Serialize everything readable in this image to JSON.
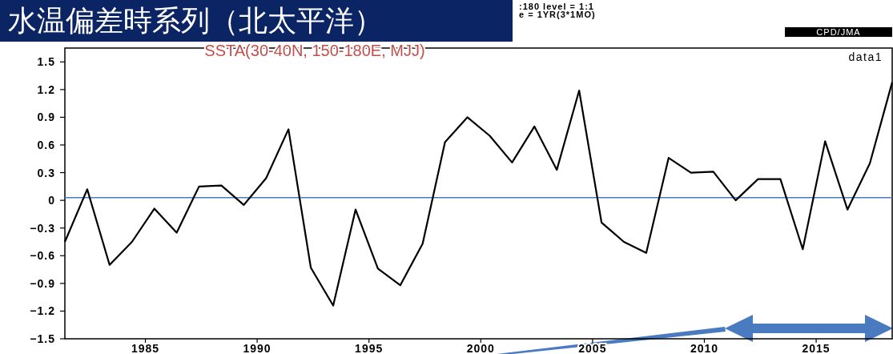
{
  "chart_data": {
    "type": "line",
    "title": "水温偏差時系列（北太平洋）",
    "subtitle": "SSTA(30-40N, 150-180E, MJJ)",
    "annotations": [
      ":180  level = 1:1",
      "e = 1YR(3*1MO)",
      "CPD/JMA"
    ],
    "x": [
      1981.4,
      1982.4,
      1983.4,
      1984.4,
      1985.4,
      1986.4,
      1987.4,
      1988.4,
      1989.4,
      1990.4,
      1991.4,
      1992.4,
      1993.4,
      1994.4,
      1995.4,
      1996.4,
      1997.4,
      1998.4,
      1999.4,
      2000.4,
      2001.4,
      2002.4,
      2003.4,
      2004.4,
      2005.4,
      2006.4,
      2007.4,
      2008.4,
      2009.4,
      2010.4,
      2011.4,
      2012.4,
      2013.4,
      2014.4,
      2015.4,
      2016.4,
      2017.4,
      2018.4
    ],
    "series": [
      {
        "name": "data1",
        "color": "#000000",
        "values": [
          -0.45,
          0.12,
          -0.7,
          -0.45,
          -0.09,
          -0.35,
          0.15,
          0.16,
          -0.05,
          0.24,
          0.77,
          -0.73,
          -1.14,
          -0.1,
          -0.74,
          -0.92,
          -0.47,
          0.63,
          0.9,
          0.7,
          0.41,
          0.8,
          0.33,
          1.19,
          -0.24,
          -0.45,
          -0.57,
          0.46,
          0.3,
          0.31,
          0,
          0.23,
          0.23,
          -0.53,
          0.64,
          -0.1,
          0.4,
          1.28
        ]
      }
    ],
    "xlim": [
      1981.4,
      2018.4
    ],
    "xticks": [
      1985,
      1990,
      1995,
      2000,
      2005,
      2010,
      2015
    ],
    "ylim": [
      -1.5,
      1.65
    ],
    "yticks": [
      -1.5,
      -1.2,
      -0.9,
      -0.6,
      -0.3,
      0,
      0.3,
      0.6,
      0.9,
      1.2,
      1.5
    ],
    "ref_lines": [
      {
        "axis": "y",
        "value": 0.03,
        "color": "#4a7bc0"
      }
    ],
    "marker": "none",
    "line_style": "solid",
    "grid": false,
    "legend": "top right"
  }
}
